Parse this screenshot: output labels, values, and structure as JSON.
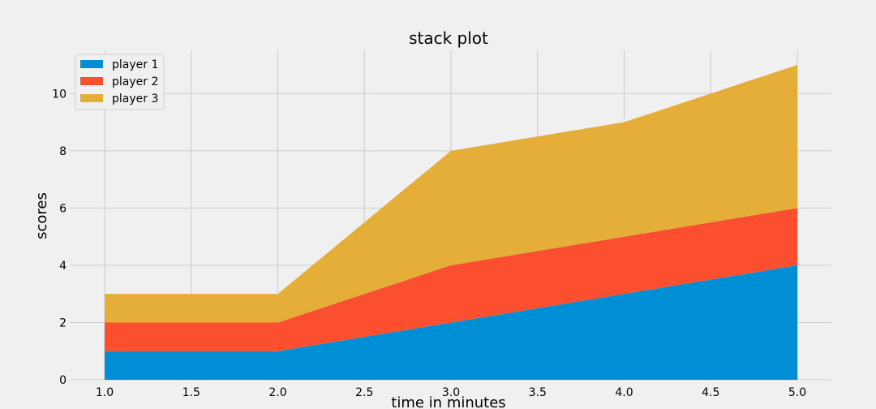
{
  "chart_data": {
    "type": "area",
    "stacked": true,
    "title": "stack plot",
    "xlabel": "time in minutes",
    "ylabel": "scores",
    "x": [
      1,
      2,
      3,
      4,
      5
    ],
    "xlim": [
      1.0,
      5.0
    ],
    "ylim": [
      0,
      11
    ],
    "x_ticks": [
      "1.0",
      "1.5",
      "2.0",
      "2.5",
      "3.0",
      "3.5",
      "4.0",
      "4.5",
      "5.0"
    ],
    "y_ticks": [
      "0",
      "2",
      "4",
      "6",
      "8",
      "10"
    ],
    "grid": true,
    "legend_position": "top-left",
    "series": [
      {
        "name": "player 1",
        "values": [
          1,
          1,
          2,
          3,
          4
        ],
        "color": "#008fd5"
      },
      {
        "name": "player 2",
        "values": [
          1,
          1,
          2,
          2,
          2
        ],
        "color": "#fc4f30"
      },
      {
        "name": "player 3",
        "values": [
          1,
          1,
          4,
          4,
          5
        ],
        "color": "#e5ae38"
      }
    ],
    "background": "#f0f0f0"
  }
}
